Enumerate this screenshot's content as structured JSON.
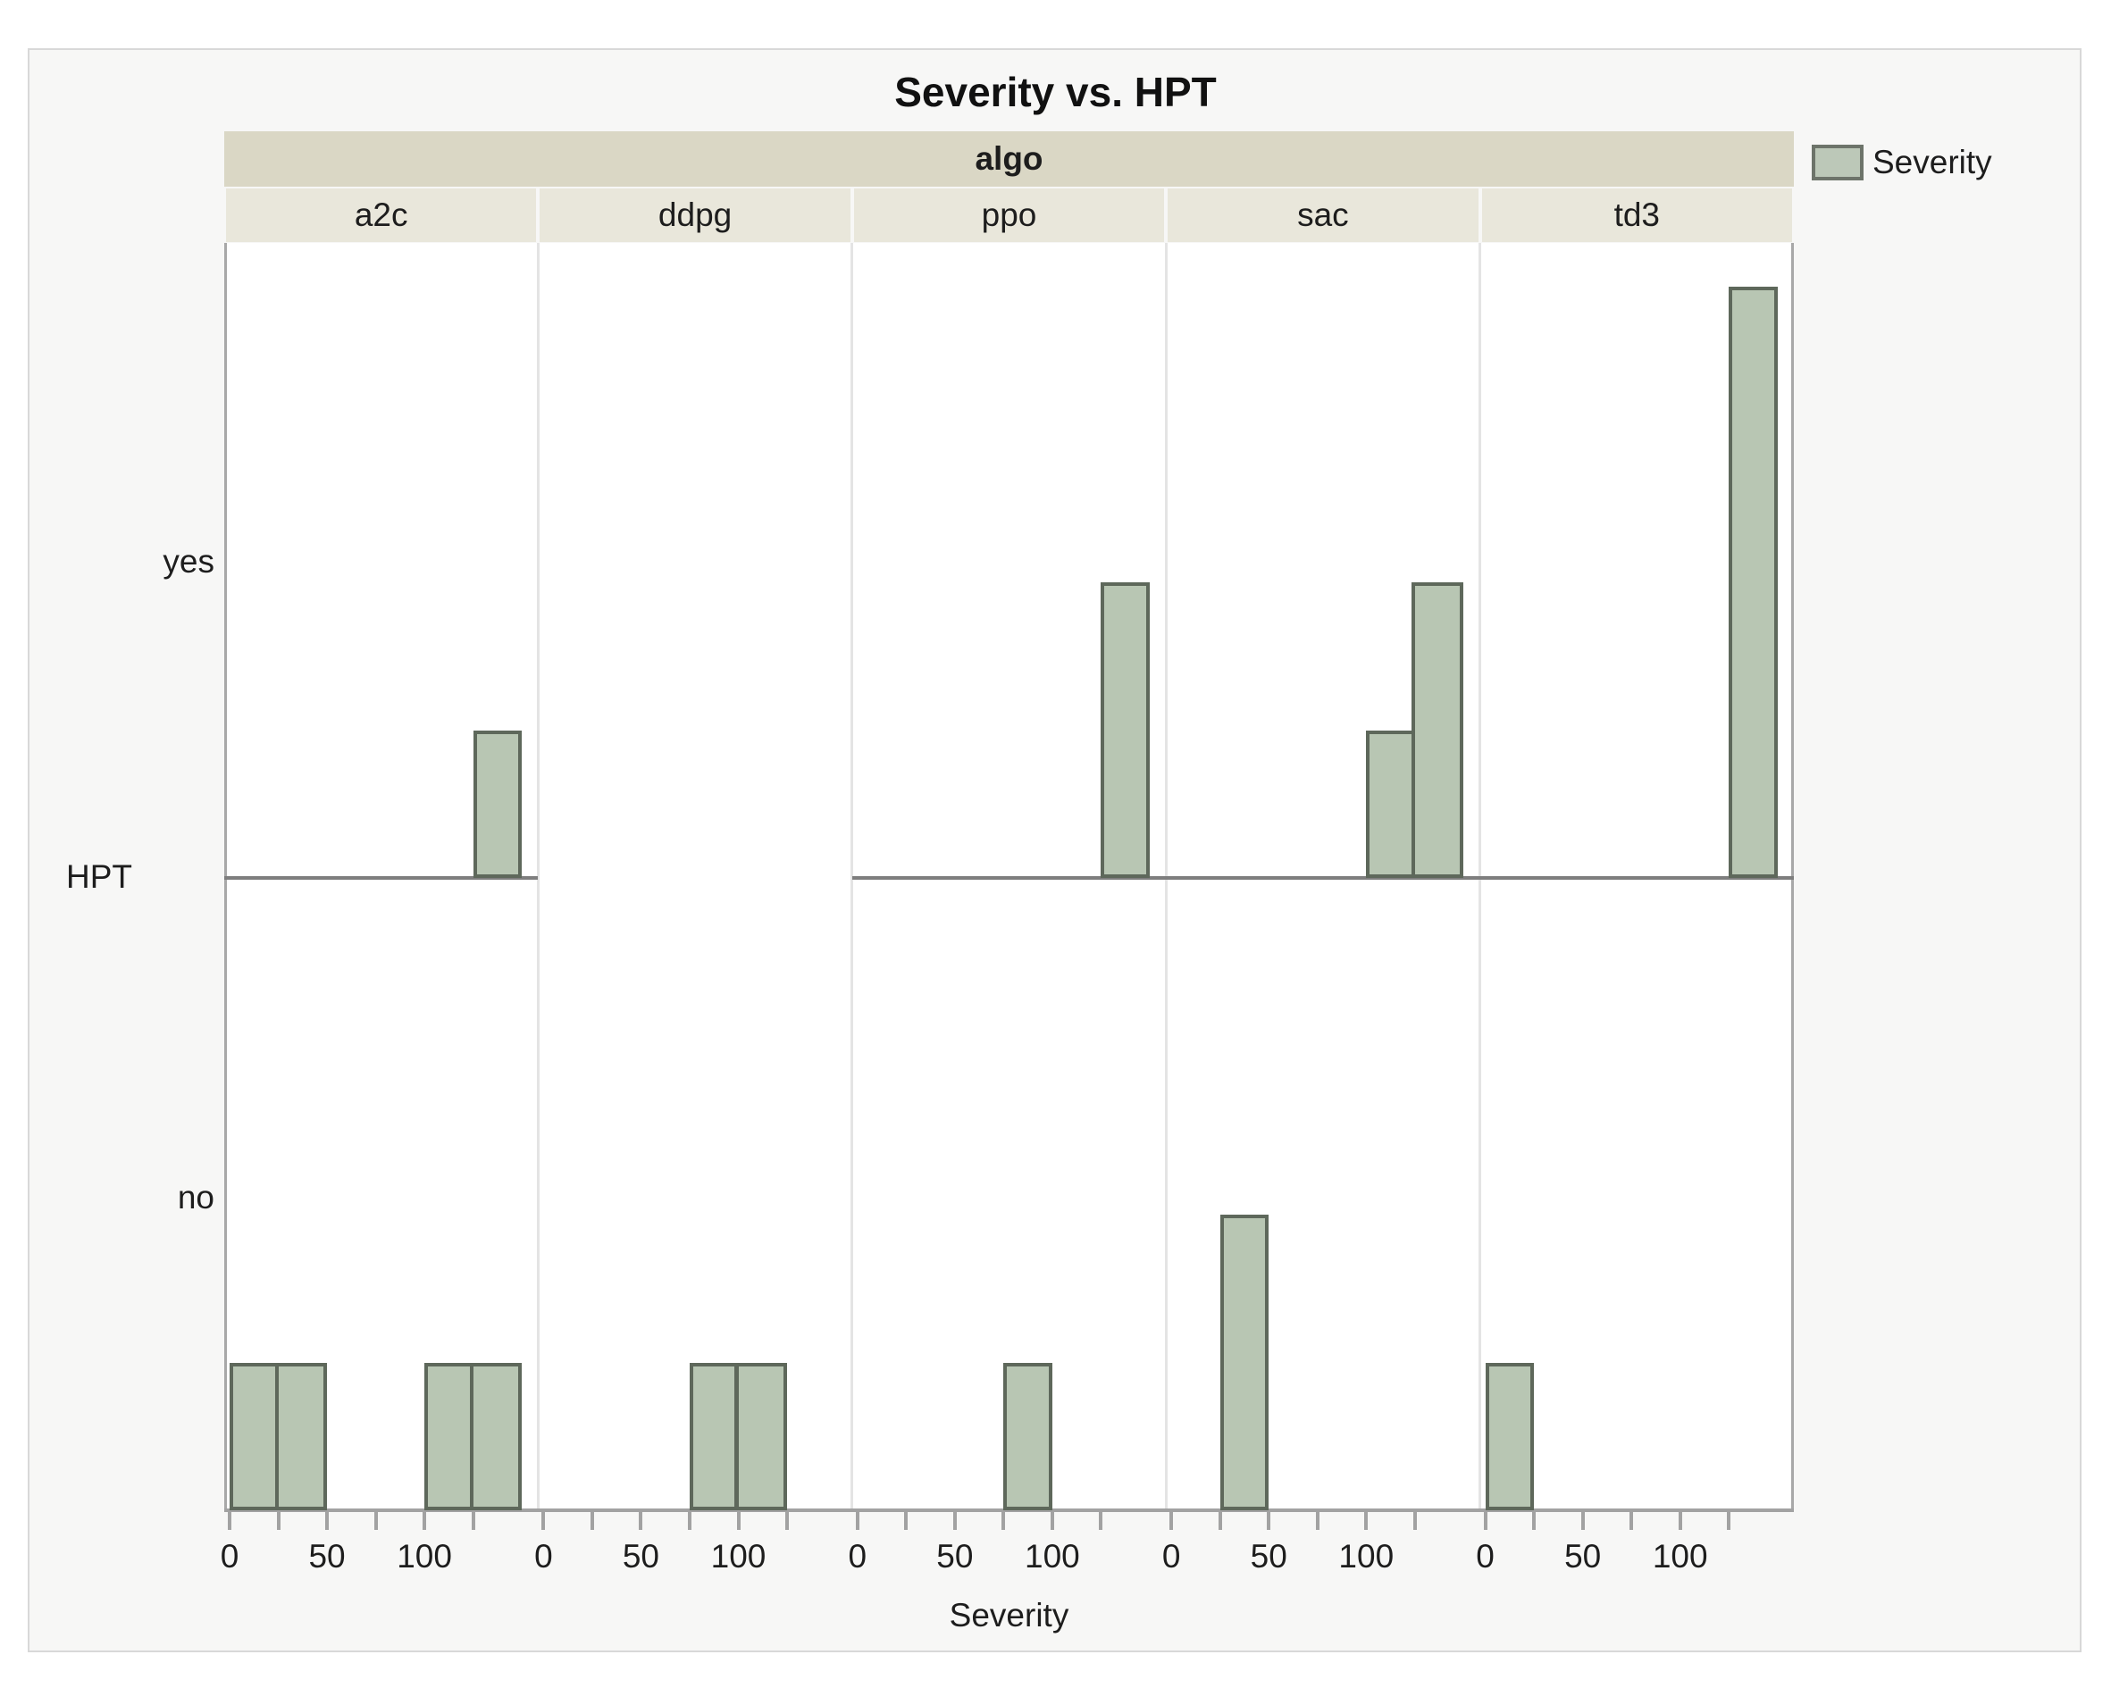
{
  "title": "Severity vs. HPT",
  "legend": {
    "label": "Severity"
  },
  "colors": {
    "bar_fill": "#b8c6b3",
    "bar_border": "#5e685b",
    "header_band": "#dad7c5",
    "header_cell": "#e9e7db",
    "figure_bg": "#f7f7f6",
    "axis_line": "#a2a2a2",
    "panel_divider": "#e4e4e4",
    "row_divider": "#7e7e7e",
    "text": "#1d1d1d"
  },
  "chart_data": {
    "type": "bar",
    "subtype": "faceted-histogram",
    "title": "Severity vs. HPT",
    "xlabel": "Severity",
    "legend_entries": [
      "Severity"
    ],
    "facet_col": {
      "label": "algo",
      "values": [
        "a2c",
        "ddpg",
        "ppo",
        "sac",
        "td3"
      ]
    },
    "facet_row": {
      "label": "HPT",
      "values": [
        "yes",
        "no"
      ]
    },
    "x_bin_width": 25,
    "x_axis_max": 155,
    "x_labeled_ticks": [
      0,
      50,
      100
    ],
    "x_minor_tick_step": 25,
    "grid": false,
    "legend_position": "top-right",
    "histograms": {
      "yes": {
        "a2c": [
          {
            "bin_start": 125,
            "bin_end": 150,
            "count": 1
          }
        ],
        "ddpg": [],
        "ppo": [
          {
            "bin_start": 125,
            "bin_end": 150,
            "count": 2
          }
        ],
        "sac": [
          {
            "bin_start": 100,
            "bin_end": 125,
            "count": 1
          },
          {
            "bin_start": 125,
            "bin_end": 150,
            "count": 2
          }
        ],
        "td3": [
          {
            "bin_start": 125,
            "bin_end": 150,
            "count": 4
          }
        ]
      },
      "no": {
        "a2c": [
          {
            "bin_start": 0,
            "bin_end": 25,
            "count": 1
          },
          {
            "bin_start": 25,
            "bin_end": 50,
            "count": 1
          },
          {
            "bin_start": 100,
            "bin_end": 125,
            "count": 1
          },
          {
            "bin_start": 125,
            "bin_end": 150,
            "count": 1
          }
        ],
        "ddpg": [
          {
            "bin_start": 75,
            "bin_end": 100,
            "count": 1
          },
          {
            "bin_start": 100,
            "bin_end": 125,
            "count": 1
          }
        ],
        "ppo": [
          {
            "bin_start": 75,
            "bin_end": 100,
            "count": 1
          }
        ],
        "sac": [
          {
            "bin_start": 25,
            "bin_end": 50,
            "count": 2
          }
        ],
        "td3": [
          {
            "bin_start": 0,
            "bin_end": 25,
            "count": 1
          }
        ]
      }
    },
    "yes_row_baseline_columns": [
      "a2c",
      "ppo",
      "sac",
      "td3"
    ]
  }
}
